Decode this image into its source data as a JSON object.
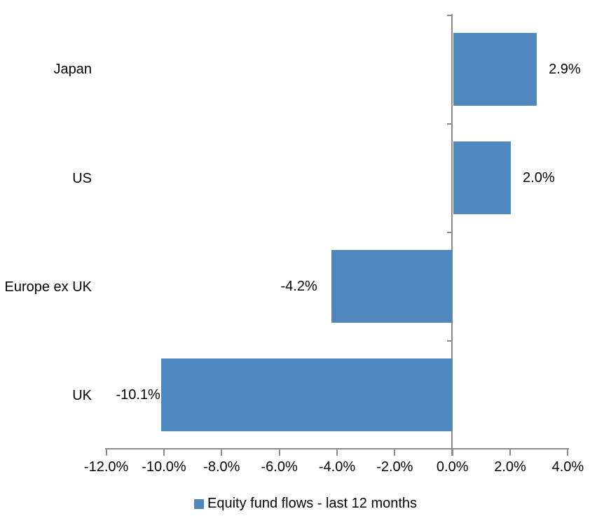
{
  "colors": {
    "bar": "#4E88BE",
    "axis": "#8C8C8C",
    "text": "#000000",
    "background": "#FFFFFF"
  },
  "legend": {
    "label": "Equity fund flows - last 12 months",
    "position": "bottom"
  },
  "chart_data": {
    "type": "bar",
    "orientation": "horizontal",
    "title": "",
    "categories": [
      "Japan",
      "US",
      "Europe ex UK",
      "UK"
    ],
    "values": [
      2.9,
      2.0,
      -4.2,
      -10.1
    ],
    "data_labels": [
      "2.9%",
      "2.0%",
      "-4.2%",
      "-10.1%"
    ],
    "series": [
      {
        "name": "Equity fund flows - last 12 months",
        "values": [
          2.9,
          2.0,
          -4.2,
          -10.1
        ]
      }
    ],
    "x_tick_labels": [
      "-12.0%",
      "-10.0%",
      "-8.0%",
      "-6.0%",
      "-4.0%",
      "-2.0%",
      "0.0%",
      "2.0%",
      "4.0%"
    ],
    "x_tick_values": [
      -12,
      -10,
      -8,
      -6,
      -4,
      -2,
      0,
      2,
      4
    ],
    "xlim": [
      -12,
      4
    ],
    "ylabel": "",
    "xlabel": "",
    "grid": false,
    "legend_position": "bottom"
  }
}
